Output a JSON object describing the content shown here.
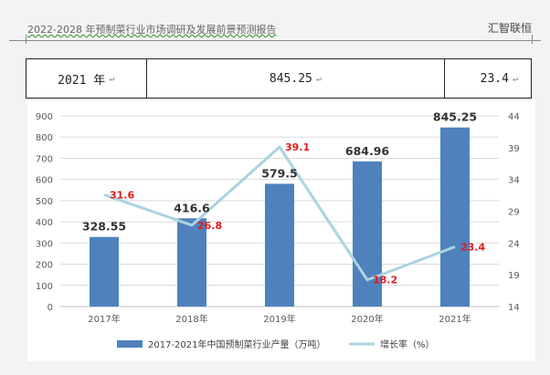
{
  "header": {
    "title": "2022-2028 年预制菜行业市场调研及发展前景预测报告",
    "publisher": "汇智联恒"
  },
  "row": {
    "year": "2021 年",
    "output": "845.25",
    "growth": "23.4",
    "mark": "↵"
  },
  "chart_data": {
    "type": "bar",
    "categories": [
      "2017年",
      "2018年",
      "2019年",
      "2020年",
      "2021年"
    ],
    "series": [
      {
        "name": "2017-2021年中国预制菜行业产量（万吨）",
        "type": "bar",
        "axis": "left",
        "color": "#4f81bd",
        "values": [
          328.55,
          416.6,
          579.5,
          684.96,
          845.25
        ]
      },
      {
        "name": "增长率（%）",
        "type": "line",
        "axis": "right",
        "color": "#a9d4e0",
        "values": [
          31.6,
          26.8,
          39.1,
          18.2,
          23.4
        ]
      }
    ],
    "left_axis": {
      "min": 0,
      "max": 900,
      "ticks": [
        0,
        100,
        200,
        300,
        400,
        500,
        600,
        700,
        800,
        900
      ]
    },
    "right_axis": {
      "min": 14,
      "max": 44,
      "ticks": [
        14,
        19,
        24,
        29,
        34,
        39,
        44
      ]
    },
    "bar_label_color": "#333333",
    "line_label_color": "#e11b1b",
    "legend_position": "bottom",
    "grid": true
  }
}
